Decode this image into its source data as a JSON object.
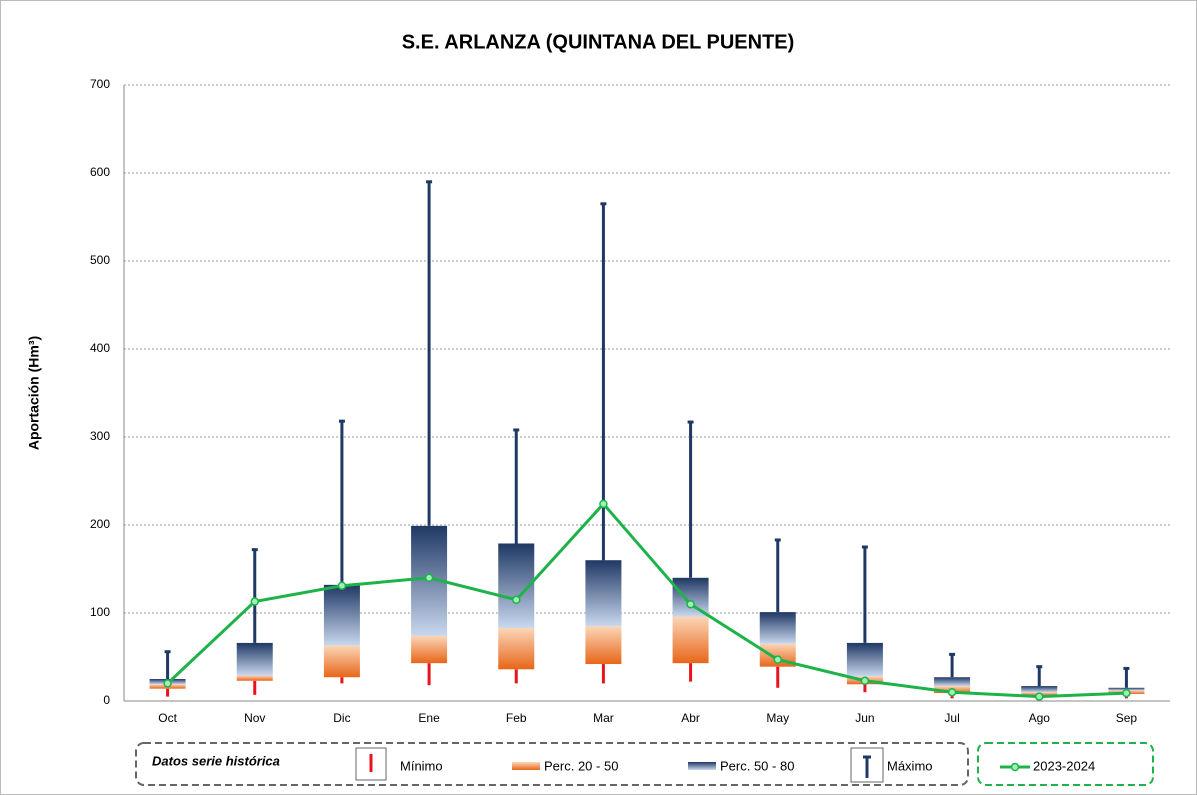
{
  "chart_data": {
    "type": "box",
    "title": "S.E. ARLANZA (QUINTANA DEL PUENTE)",
    "y_label": "Aportación (Hm³)",
    "categories": [
      "Oct",
      "Nov",
      "Dic",
      "Ene",
      "Feb",
      "Mar",
      "Abr",
      "May",
      "Jun",
      "Jul",
      "Ago",
      "Sep"
    ],
    "min": [
      5,
      7,
      20,
      18,
      20,
      20,
      22,
      15,
      10,
      3,
      1,
      3
    ],
    "p20": [
      14,
      23,
      27,
      43,
      36,
      42,
      43,
      39,
      19,
      9,
      6,
      8
    ],
    "p50": [
      19,
      29,
      63,
      74,
      83,
      85,
      96,
      65,
      28,
      17,
      10,
      12
    ],
    "p80": [
      25,
      66,
      132,
      199,
      179,
      160,
      140,
      101,
      66,
      27,
      17,
      15
    ],
    "max": [
      56,
      172,
      318,
      590,
      308,
      565,
      317,
      183,
      175,
      53,
      39,
      37
    ],
    "line": {
      "name": "2023-2024",
      "color": "#1db34a",
      "values": [
        20,
        113,
        131,
        140,
        115,
        224,
        110,
        47,
        23,
        10,
        5,
        9
      ]
    },
    "legend": {
      "title": "Datos serie histórica",
      "min": "Mínimo",
      "p20_50": "Perc. 20 - 50",
      "p50_80": "Perc. 50 - 80",
      "max": "Máximo"
    },
    "colors": {
      "min": "#e8141b",
      "p20_50": "#ee7d31",
      "p50_80": "#1f3864"
    },
    "ylim": [
      0,
      700
    ],
    "yticks": [
      0,
      100,
      200,
      300,
      400,
      500,
      600,
      700
    ],
    "grid": true
  }
}
